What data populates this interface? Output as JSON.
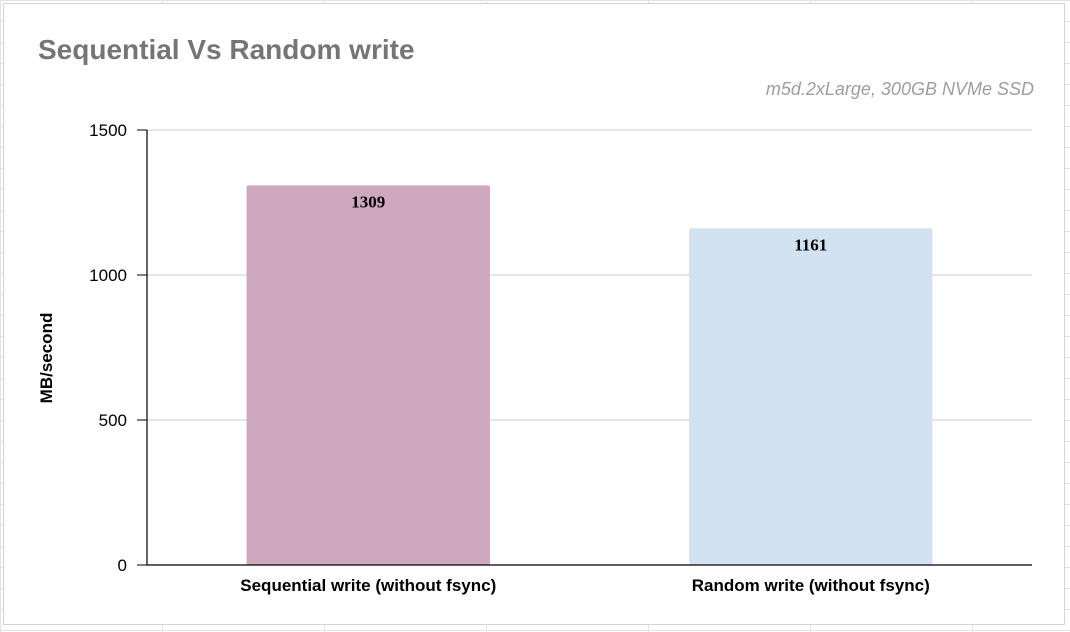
{
  "chart_data": {
    "type": "bar",
    "title": "Sequential Vs Random write",
    "subtitle": "m5d.2xLarge, 300GB NVMe SSD",
    "xlabel": "",
    "ylabel": "MB/second",
    "categories": [
      "Sequential write (without fsync)",
      "Random write (without fsync)"
    ],
    "values": [
      1309,
      1161
    ],
    "data_labels": [
      "1309",
      "1161"
    ],
    "y_ticks": [
      0,
      500,
      1000,
      1500
    ],
    "y_tick_labels": [
      "0",
      "500",
      "1000",
      "1500"
    ],
    "ylim": [
      0,
      1500
    ],
    "grid": true,
    "legend": "none",
    "colors": [
      "#cda8be",
      "#d3e2f1"
    ]
  }
}
